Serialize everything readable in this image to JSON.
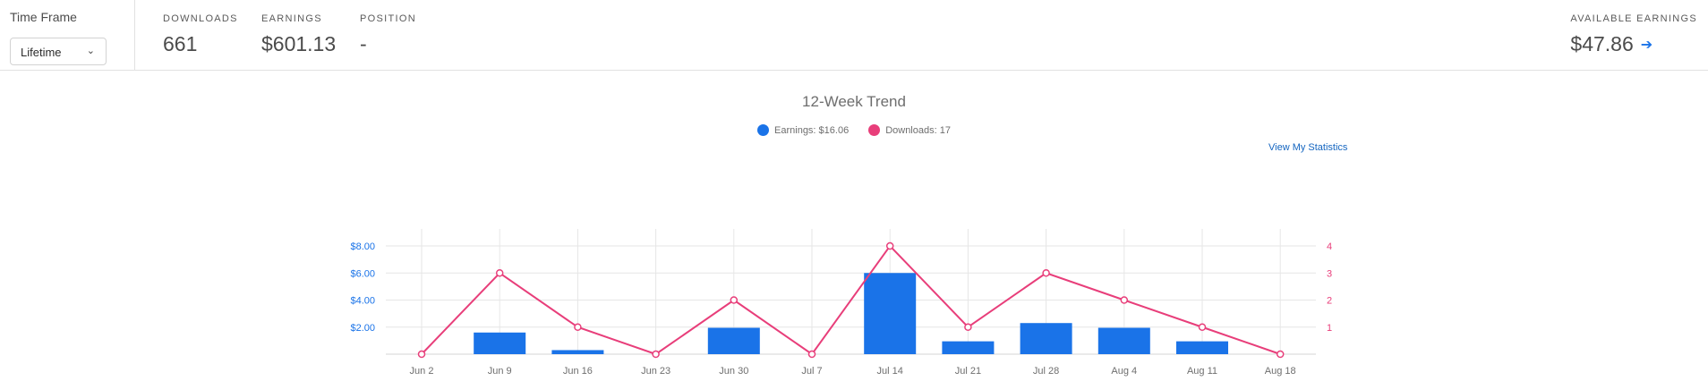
{
  "timeframe": {
    "label": "Time Frame",
    "selected": "Lifetime"
  },
  "stats": {
    "downloads": {
      "label": "DOWNLOADS",
      "value": "661"
    },
    "earnings": {
      "label": "EARNINGS",
      "value": "$601.13"
    },
    "position": {
      "label": "POSITION",
      "value": "-"
    },
    "available": {
      "label": "AVAILABLE EARNINGS",
      "value": "$47.86"
    }
  },
  "chart": {
    "title": "12-Week Trend",
    "legend": {
      "earnings": "Earnings: $16.06",
      "downloads": "Downloads: 17"
    },
    "link": "View My Statistics"
  },
  "colors": {
    "earnings": "#1a73e8",
    "downloads": "#e83e7a",
    "link": "#1465c0"
  },
  "icons": {
    "dropdown": "chevron-down-icon",
    "available_link": "arrow-right-icon"
  },
  "chart_data": {
    "type": "bar",
    "title": "12-Week Trend",
    "categories": [
      "Jun 2",
      "Jun 9",
      "Jun 16",
      "Jun 23",
      "Jun 30",
      "Jul 7",
      "Jul 14",
      "Jul 21",
      "Jul 28",
      "Aug 4",
      "Aug 11",
      "Aug 18"
    ],
    "series": [
      {
        "name": "Earnings: $16.06",
        "type": "bar",
        "axis": "left",
        "values": [
          0,
          1.6,
          0.3,
          0,
          1.95,
          0,
          6.0,
          0.95,
          2.3,
          1.95,
          0.95,
          0
        ]
      },
      {
        "name": "Downloads: 17",
        "type": "line",
        "axis": "right",
        "values": [
          0,
          3,
          1,
          0,
          2,
          0,
          4,
          1,
          3,
          2,
          1,
          0
        ]
      }
    ],
    "y_left": {
      "ticks": [
        "$2.00",
        "$4.00",
        "$6.00",
        "$8.00"
      ],
      "range": [
        0,
        8
      ]
    },
    "y_right": {
      "ticks": [
        "1",
        "2",
        "3",
        "4"
      ],
      "range": [
        0,
        4
      ]
    },
    "grid": true,
    "legend_position": "top-center"
  }
}
